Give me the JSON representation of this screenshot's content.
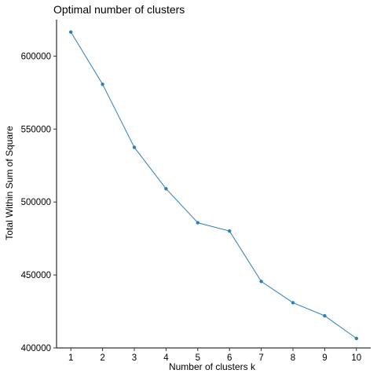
{
  "chart_data": {
    "type": "line",
    "title": "Optimal number of clusters",
    "xlabel": "Number of clusters k",
    "ylabel": "Total Within Sum of Square",
    "categories": [
      "1",
      "2",
      "3",
      "4",
      "5",
      "6",
      "7",
      "8",
      "9",
      "10"
    ],
    "x": [
      1,
      2,
      3,
      4,
      5,
      6,
      7,
      8,
      9,
      10
    ],
    "values": [
      616500,
      580700,
      537500,
      509100,
      485800,
      480100,
      445600,
      431000,
      422000,
      406500
    ],
    "yticks": [
      400000,
      450000,
      500000,
      550000,
      600000
    ],
    "ytick_labels": [
      "400000",
      "450000",
      "500000",
      "550000",
      "600000"
    ],
    "ylim": [
      400000,
      625000
    ],
    "xlim": [
      0.55,
      10.45
    ],
    "grid": false,
    "legend": "none",
    "colors": {
      "series": "#2e7fb8",
      "axis": "#000000"
    }
  }
}
